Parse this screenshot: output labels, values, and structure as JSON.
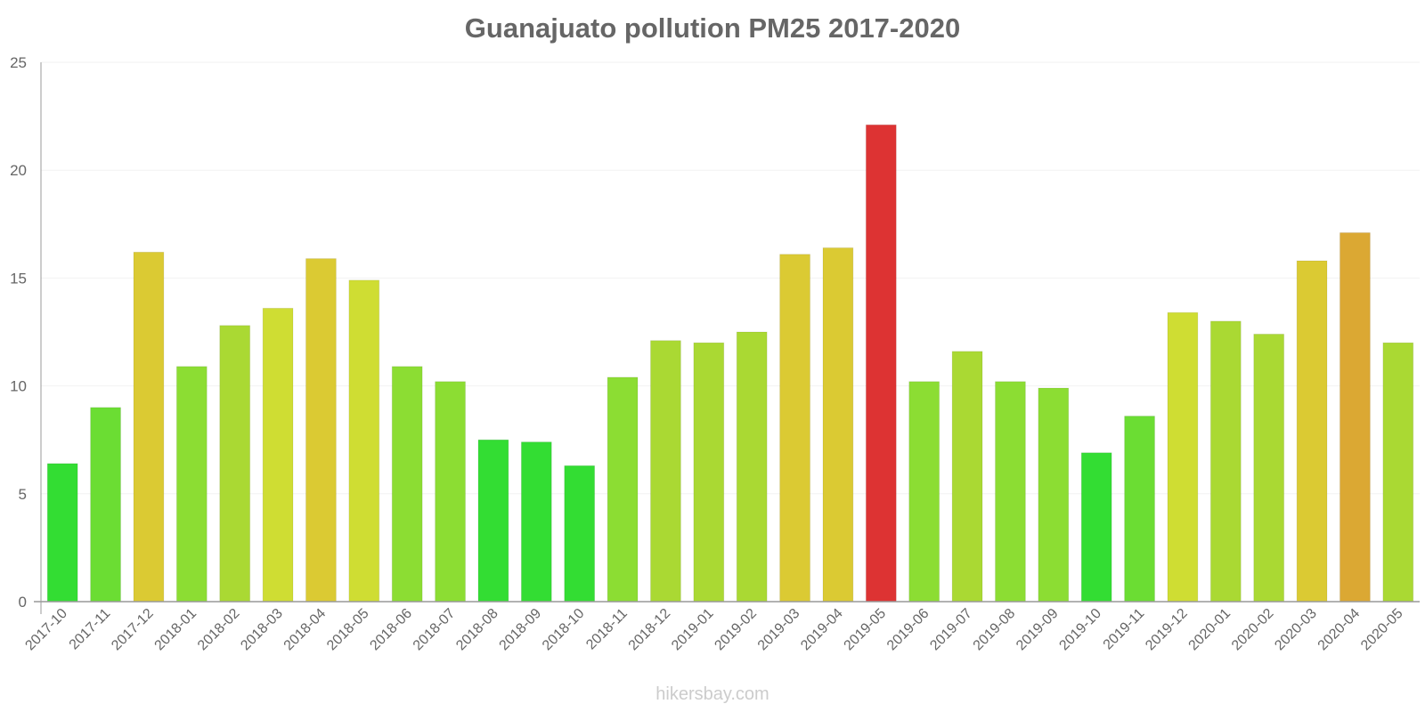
{
  "header": {
    "title": "Guanajuato pollution PM25 2017-2020"
  },
  "footer": {
    "watermark": "hikersbay.com"
  },
  "colors": {
    "green": "#33dd33",
    "light_green": "#6bdd33",
    "yellow_green": "#8cdd33",
    "lime": "#aad933",
    "yellow": "#cfdd33",
    "mustard": "#dbca33",
    "orange": "#dba833",
    "red": "#dd3333",
    "axis": "#999999",
    "grid": "#f2f2f2",
    "text": "#666666"
  },
  "chart_data": {
    "type": "bar",
    "title": "Guanajuato pollution PM25 2017-2020",
    "xlabel": "",
    "ylabel": "",
    "ylim": [
      0,
      25
    ],
    "yticks": [
      0,
      5,
      10,
      15,
      20,
      25
    ],
    "grid": true,
    "legend": null,
    "categories": [
      "2017-10",
      "2017-11",
      "2017-12",
      "2018-01",
      "2018-02",
      "2018-03",
      "2018-04",
      "2018-05",
      "2018-06",
      "2018-07",
      "2018-08",
      "2018-09",
      "2018-10",
      "2018-11",
      "2018-12",
      "2019-01",
      "2019-02",
      "2019-03",
      "2019-04",
      "2019-05",
      "2019-06",
      "2019-07",
      "2019-08",
      "2019-09",
      "2019-10",
      "2019-11",
      "2019-12",
      "2020-01",
      "2020-02",
      "2020-03",
      "2020-04",
      "2020-05"
    ],
    "values": [
      6.4,
      9.0,
      16.2,
      10.9,
      12.8,
      13.6,
      15.9,
      14.9,
      10.9,
      10.2,
      7.5,
      7.4,
      6.3,
      10.4,
      12.1,
      12.0,
      12.5,
      16.1,
      16.4,
      22.1,
      10.2,
      11.6,
      10.2,
      9.9,
      6.9,
      8.6,
      13.4,
      13.0,
      12.4,
      15.8,
      17.1,
      12.0
    ],
    "bar_colors": [
      "#33dd33",
      "#6bdd33",
      "#dbca33",
      "#8cdd33",
      "#aad933",
      "#cfdd33",
      "#dbca33",
      "#cfdd33",
      "#8cdd33",
      "#8cdd33",
      "#33dd33",
      "#33dd33",
      "#33dd33",
      "#8cdd33",
      "#aad933",
      "#aad933",
      "#aad933",
      "#dbca33",
      "#dbca33",
      "#dd3333",
      "#8cdd33",
      "#aad933",
      "#8cdd33",
      "#8cdd33",
      "#33dd33",
      "#6bdd33",
      "#cfdd33",
      "#aad933",
      "#aad933",
      "#dbca33",
      "#dba833",
      "#aad933"
    ]
  }
}
